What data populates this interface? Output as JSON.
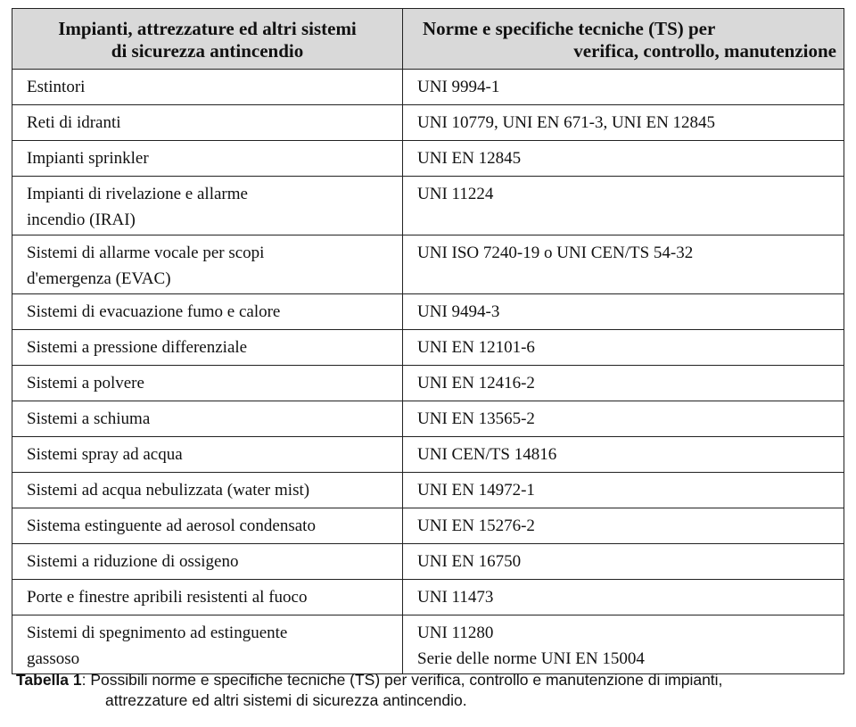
{
  "table": {
    "headers": [
      "Impianti, attrezzature ed altri sistemi di sicurezza antincendio",
      "Norme e specifiche tecniche (TS) per verifica, controllo, manutenzione"
    ],
    "header_lines": {
      "col1": [
        "Impianti, attrezzature ed altri sistemi",
        "di sicurezza antincendio"
      ],
      "col2": [
        "Norme e specifiche tecniche (TS) per",
        "verifica, controllo, manutenzione"
      ]
    },
    "rows": [
      {
        "system": [
          "Estintori"
        ],
        "norms": [
          "UNI 9994-1"
        ]
      },
      {
        "system": [
          "Reti di idranti"
        ],
        "norms": [
          "UNI 10779, UNI EN 671-3, UNI EN 12845"
        ]
      },
      {
        "system": [
          "Impianti sprinkler"
        ],
        "norms": [
          "UNI EN 12845"
        ]
      },
      {
        "system": [
          "Impianti di rivelazione e allarme",
          "incendio (IRAI)"
        ],
        "norms": [
          "UNI 11224"
        ]
      },
      {
        "system": [
          "Sistemi di allarme vocale per scopi",
          "d'emergenza (EVAC)"
        ],
        "norms": [
          "UNI ISO 7240-19 o UNI CEN/TS 54-32"
        ]
      },
      {
        "system": [
          "Sistemi di evacuazione fumo e calore"
        ],
        "norms": [
          "UNI 9494-3"
        ]
      },
      {
        "system": [
          "Sistemi a pressione differenziale"
        ],
        "norms": [
          "UNI EN 12101-6"
        ]
      },
      {
        "system": [
          "Sistemi a polvere"
        ],
        "norms": [
          "UNI EN 12416-2"
        ]
      },
      {
        "system": [
          "Sistemi a schiuma"
        ],
        "norms": [
          "UNI EN 13565-2"
        ]
      },
      {
        "system": [
          "Sistemi spray ad acqua"
        ],
        "norms": [
          "UNI CEN/TS 14816"
        ]
      },
      {
        "system": [
          "Sistemi ad acqua nebulizzata (water mist)"
        ],
        "norms": [
          "UNI EN 14972-1"
        ]
      },
      {
        "system": [
          "Sistema estinguente ad aerosol condensato"
        ],
        "norms": [
          "UNI EN 15276-2"
        ]
      },
      {
        "system": [
          "Sistemi a riduzione di ossigeno"
        ],
        "norms": [
          "UNI EN 16750"
        ]
      },
      {
        "system": [
          "Porte e finestre apribili resistenti al fuoco"
        ],
        "norms": [
          "UNI 11473"
        ]
      },
      {
        "system": [
          "Sistemi di spegnimento ad estinguente",
          "gassoso"
        ],
        "norms": [
          "UNI 11280",
          "Serie delle norme UNI EN 15004"
        ]
      }
    ]
  },
  "caption": {
    "label": "Tabella 1",
    "text_line1": ": Possibili norme e specifiche tecniche (TS) per verifica, controllo e manutenzione di impianti,",
    "text_line2": "attrezzature ed altri sistemi di sicurezza antincendio."
  },
  "colors": {
    "header_background": "#d9d9d9",
    "border": "#222222",
    "text": "#111111"
  }
}
